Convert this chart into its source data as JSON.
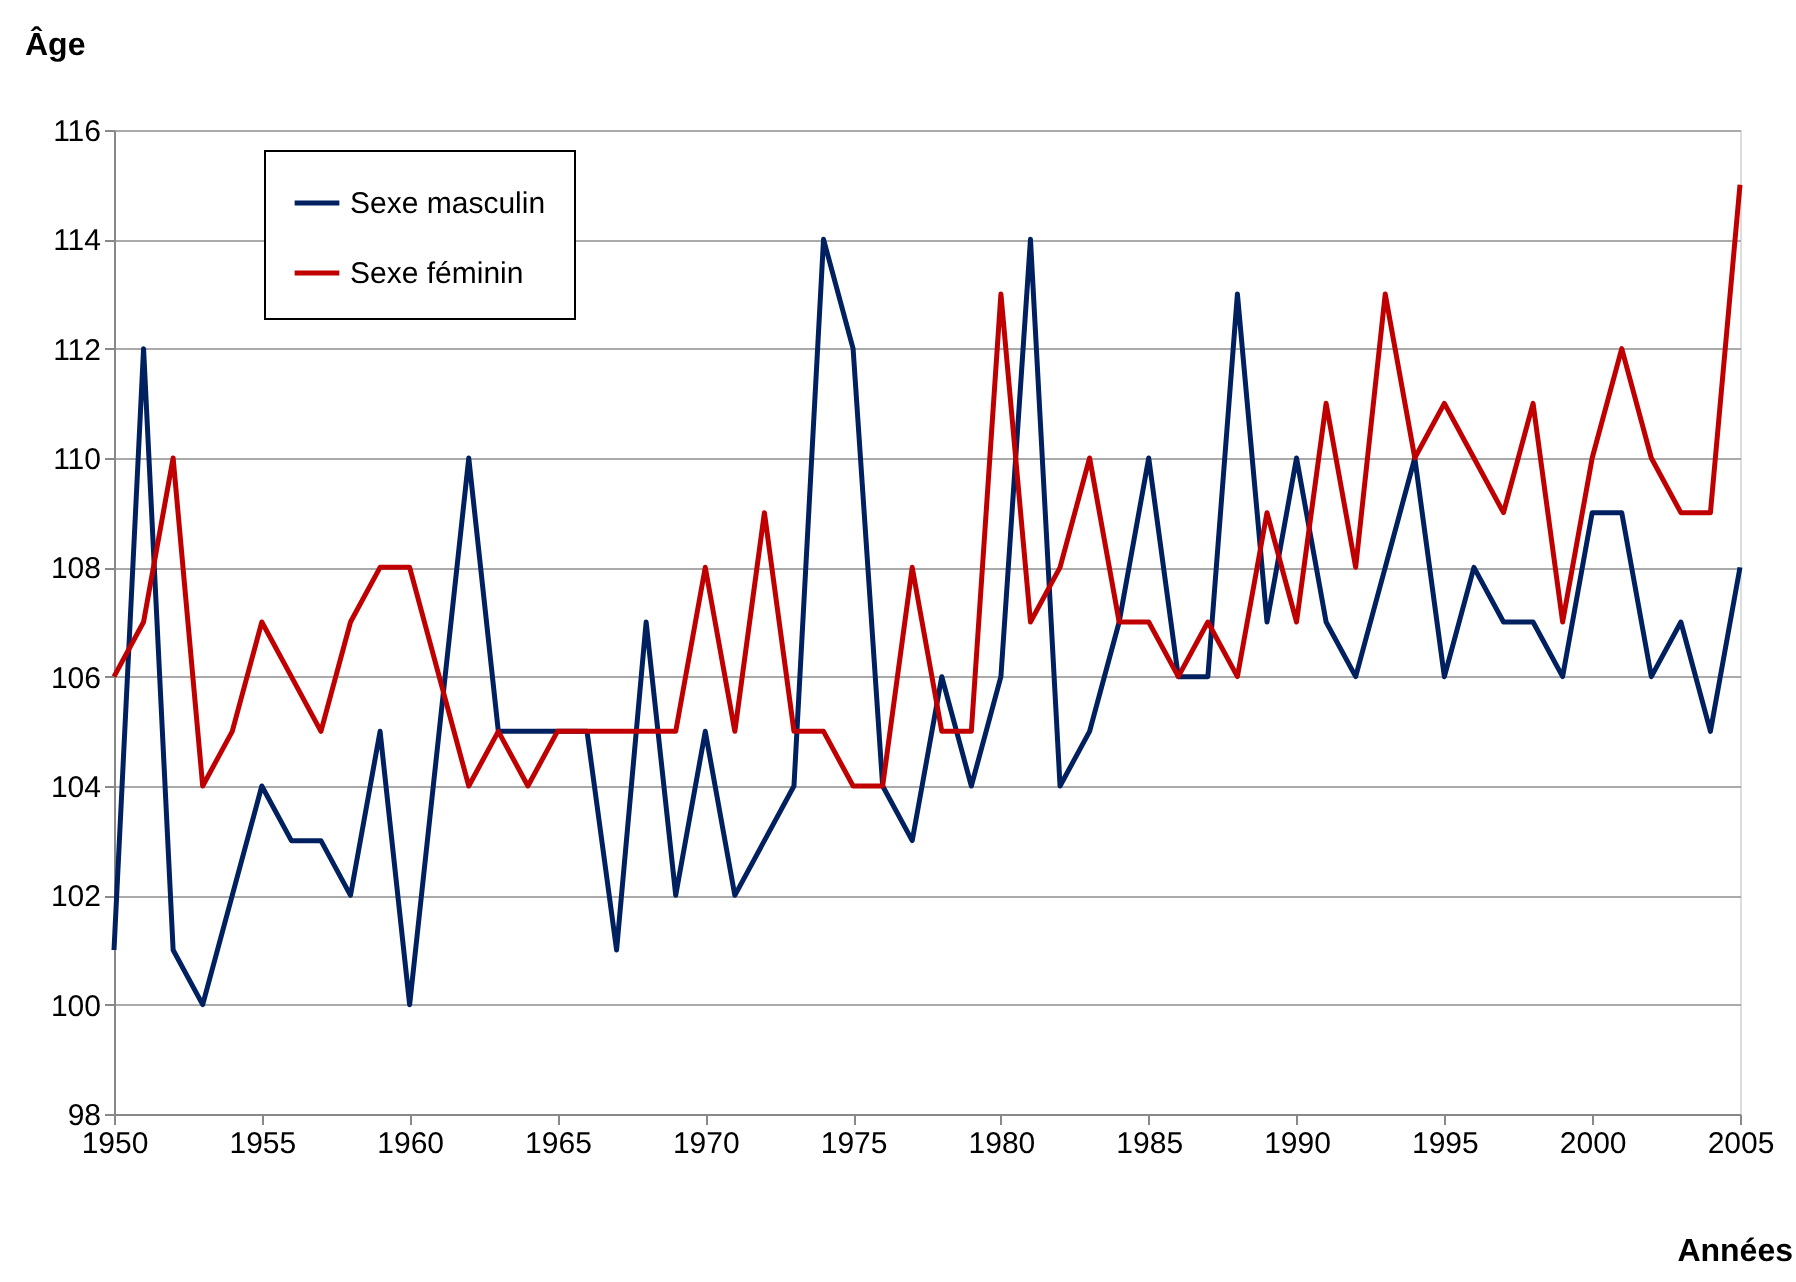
{
  "chart_data": {
    "type": "line",
    "xlabel": "Années",
    "ylabel": "Âge",
    "x": [
      1950,
      1951,
      1952,
      1953,
      1954,
      1955,
      1956,
      1957,
      1958,
      1959,
      1960,
      1961,
      1962,
      1963,
      1964,
      1965,
      1966,
      1967,
      1968,
      1969,
      1970,
      1971,
      1972,
      1973,
      1974,
      1975,
      1976,
      1977,
      1978,
      1979,
      1980,
      1981,
      1982,
      1983,
      1984,
      1985,
      1986,
      1987,
      1988,
      1989,
      1990,
      1991,
      1992,
      1993,
      1994,
      1995,
      1996,
      1997,
      1998,
      1999,
      2000,
      2001,
      2002,
      2003,
      2004,
      2005
    ],
    "series": [
      {
        "name": "Sexe masculin",
        "color": "#002060",
        "values": [
          101,
          112,
          101,
          100,
          102,
          104,
          103,
          103,
          102,
          105,
          100,
          105,
          110,
          105,
          105,
          105,
          105,
          101,
          107,
          102,
          105,
          102,
          103,
          104,
          114,
          112,
          104,
          103,
          106,
          104,
          106,
          114,
          104,
          105,
          107,
          110,
          106,
          106,
          113,
          107,
          110,
          107,
          106,
          108,
          110,
          106,
          108,
          107,
          107,
          106,
          109,
          109,
          106,
          107,
          105,
          108
        ]
      },
      {
        "name": "Sexe féminin",
        "color": "#c00000",
        "values": [
          106,
          107,
          110,
          104,
          105,
          107,
          106,
          105,
          107,
          108,
          108,
          106,
          104,
          105,
          104,
          105,
          105,
          105,
          105,
          105,
          108,
          105,
          109,
          105,
          105,
          104,
          104,
          108,
          105,
          105,
          113,
          107,
          108,
          110,
          107,
          107,
          106,
          107,
          106,
          109,
          107,
          111,
          108,
          113,
          110,
          111,
          110,
          109,
          111,
          107,
          110,
          112,
          110,
          109,
          109,
          115
        ]
      }
    ],
    "xlim": [
      1950,
      2005
    ],
    "xticks": [
      1950,
      1955,
      1960,
      1965,
      1970,
      1975,
      1980,
      1985,
      1990,
      1995,
      2000,
      2005
    ],
    "ylim": [
      98,
      116
    ],
    "yticks": [
      98,
      100,
      102,
      104,
      106,
      108,
      110,
      112,
      114,
      116
    ],
    "grid": "y",
    "legend": "top left",
    "marker": "none",
    "line_style": "solid"
  }
}
